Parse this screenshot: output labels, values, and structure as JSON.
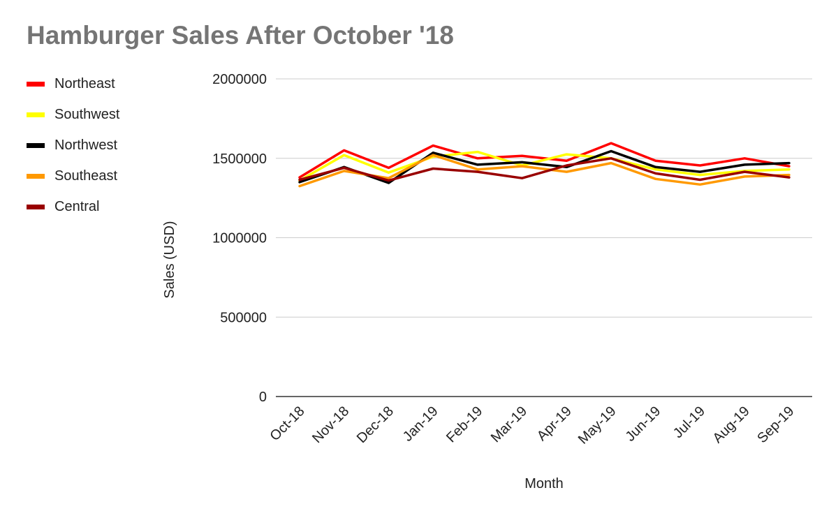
{
  "chart_data": {
    "type": "line",
    "title": "Hamburger Sales After October '18",
    "xlabel": "Month",
    "ylabel": "Sales (USD)",
    "ylim": [
      0,
      2000000
    ],
    "yticks": [
      "0",
      "500000",
      "1000000",
      "1500000",
      "2000000"
    ],
    "categories": [
      "Oct-18",
      "Nov-18",
      "Dec-18",
      "Jan-19",
      "Feb-19",
      "Mar-19",
      "Apr-19",
      "May-19",
      "Jun-19",
      "Jul-19",
      "Aug-19",
      "Sep-19"
    ],
    "grid": true,
    "legend_position": "left",
    "series": [
      {
        "name": "Northeast",
        "color": "#ff0000",
        "values": [
          1380000,
          1550000,
          1440000,
          1580000,
          1500000,
          1515000,
          1485000,
          1595000,
          1485000,
          1455000,
          1500000,
          1450000
        ]
      },
      {
        "name": "Southwest",
        "color": "#ffff00",
        "values": [
          1360000,
          1520000,
          1410000,
          1510000,
          1540000,
          1455000,
          1525000,
          1500000,
          1430000,
          1395000,
          1420000,
          1430000
        ]
      },
      {
        "name": "Northwest",
        "color": "#000000",
        "values": [
          1350000,
          1445000,
          1345000,
          1535000,
          1460000,
          1475000,
          1445000,
          1545000,
          1445000,
          1415000,
          1460000,
          1470000
        ]
      },
      {
        "name": "Southeast",
        "color": "#ff9900",
        "values": [
          1325000,
          1420000,
          1375000,
          1520000,
          1430000,
          1450000,
          1415000,
          1470000,
          1370000,
          1335000,
          1385000,
          1395000
        ]
      },
      {
        "name": "Central",
        "color": "#990000",
        "values": [
          1365000,
          1440000,
          1360000,
          1435000,
          1415000,
          1375000,
          1455000,
          1500000,
          1405000,
          1365000,
          1415000,
          1380000
        ]
      }
    ]
  }
}
